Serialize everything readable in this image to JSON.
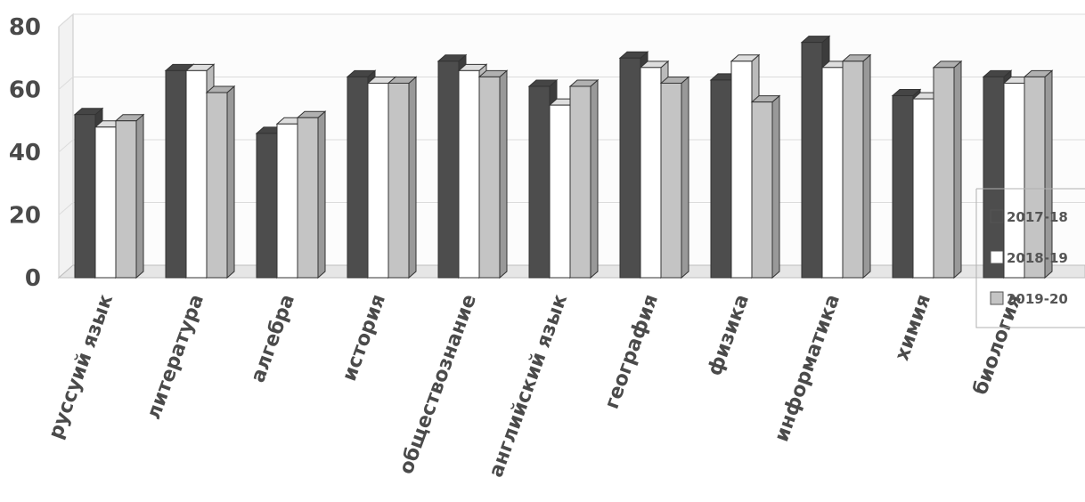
{
  "chart_data": {
    "type": "bar",
    "title": "",
    "xlabel": "",
    "ylabel": "",
    "ylim": [
      0,
      80
    ],
    "yticks": [
      0,
      20,
      40,
      60,
      80
    ],
    "grid": true,
    "legend": "right",
    "categories": [
      "руссуий язык",
      "литература",
      "алгебра",
      "история",
      "обществознание",
      "английский язык",
      "география",
      "физика",
      "информатика",
      "химия",
      "биология"
    ],
    "series": [
      {
        "name": "2017-18",
        "color": "#4d4d4d",
        "values": [
          52,
          66,
          46,
          64,
          69,
          61,
          70,
          63,
          75,
          58,
          64
        ]
      },
      {
        "name": "2018-19",
        "color": "#ffffff",
        "values": [
          48,
          66,
          49,
          62,
          66,
          55,
          67,
          69,
          67,
          57,
          62
        ]
      },
      {
        "name": "2019-20",
        "color": "#c4c4c4",
        "values": [
          50,
          59,
          51,
          62,
          64,
          61,
          62,
          56,
          69,
          67,
          64
        ]
      }
    ]
  }
}
